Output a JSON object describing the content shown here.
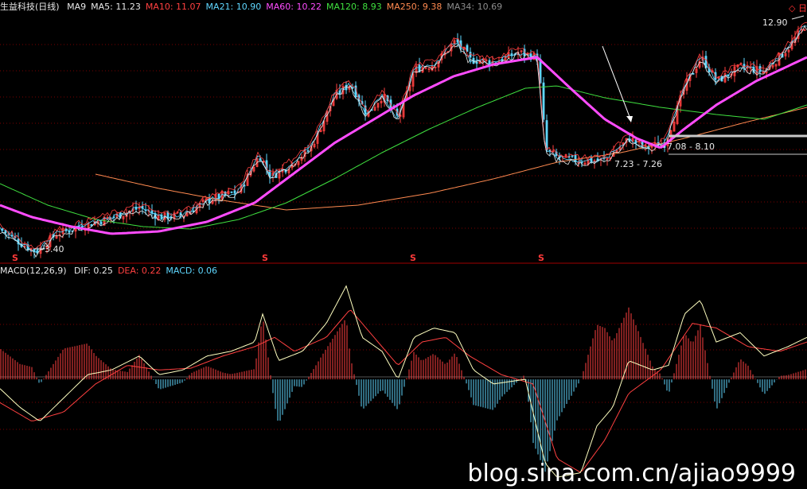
{
  "header": {
    "title": "生益科技(日线)",
    "ma_items": [
      {
        "label": "MA9",
        "value": "",
        "color": "#e8e8e8"
      },
      {
        "label": "MA5:",
        "value": "11.23",
        "color": "#e8e8e8"
      },
      {
        "label": "MA10:",
        "value": "11.07",
        "color": "#ff4040"
      },
      {
        "label": "MA21:",
        "value": "10.90",
        "color": "#5fd7ff"
      },
      {
        "label": "MA60:",
        "value": "10.22",
        "color": "#ff4cff"
      },
      {
        "label": "MA120:",
        "value": "8.93",
        "color": "#3fe03f"
      },
      {
        "label": "MA250:",
        "value": "9.38",
        "color": "#ff8a50"
      },
      {
        "label": "MA34:",
        "value": "10.69",
        "color": "#8c8c8c"
      }
    ],
    "flag_text": "◇ 日"
  },
  "macd_header": {
    "label": "MACD(12,26,9)",
    "items": [
      {
        "label": "DIF:",
        "value": "0.25",
        "color": "#e8e8e8"
      },
      {
        "label": "DEA:",
        "value": "0.22",
        "color": "#ff4040"
      },
      {
        "label": "MACD:",
        "value": "0.06",
        "color": "#5fd7ff"
      }
    ]
  },
  "annotations": {
    "high": "12.90",
    "low": "3.40",
    "range1": "7.23 - 7.26",
    "range2": "7.08 - 8.10"
  },
  "s_mark": "S",
  "watermark": "blog.sina.com.cn/ajiao9999",
  "colors": {
    "up": "#ff4040",
    "down": "#5fd7ff",
    "grid": "#7a0000",
    "ma5": "#e8e8e8",
    "ma10": "#ff4040",
    "ma21": "#5fd7ff",
    "ma60": "#ff4cff",
    "ma120": "#3fe03f",
    "ma250": "#ff8a50"
  },
  "chart_data": {
    "type": "line",
    "title": "生益科技(日线)",
    "price_range": [
      3.0,
      13.4
    ],
    "price_series": {
      "close_anchors": [
        [
          0,
          4.4
        ],
        [
          30,
          3.7
        ],
        [
          45,
          3.45
        ],
        [
          70,
          4.2
        ],
        [
          110,
          4.6
        ],
        [
          150,
          5.0
        ],
        [
          175,
          5.3
        ],
        [
          200,
          4.9
        ],
        [
          230,
          5.0
        ],
        [
          260,
          5.6
        ],
        [
          300,
          6.0
        ],
        [
          325,
          7.5
        ],
        [
          340,
          6.6
        ],
        [
          360,
          7.0
        ],
        [
          390,
          7.8
        ],
        [
          420,
          10.0
        ],
        [
          440,
          10.5
        ],
        [
          460,
          9.2
        ],
        [
          480,
          10.0
        ],
        [
          500,
          9.0
        ],
        [
          520,
          11.1
        ],
        [
          545,
          11.3
        ],
        [
          572,
          12.3
        ],
        [
          590,
          11.5
        ],
        [
          620,
          11.4
        ],
        [
          650,
          11.8
        ],
        [
          675,
          11.6
        ],
        [
          685,
          7.7
        ],
        [
          700,
          7.4
        ],
        [
          730,
          7.25
        ],
        [
          760,
          7.3
        ],
        [
          790,
          8.2
        ],
        [
          810,
          7.8
        ],
        [
          835,
          8.0
        ],
        [
          860,
          10.4
        ],
        [
          880,
          11.6
        ],
        [
          900,
          10.6
        ],
        [
          930,
          11.2
        ],
        [
          960,
          11.0
        ],
        [
          990,
          12.0
        ],
        [
          1010,
          12.9
        ]
      ],
      "ma60_anchors": [
        [
          0,
          5.4
        ],
        [
          40,
          4.9
        ],
        [
          90,
          4.5
        ],
        [
          140,
          4.2
        ],
        [
          200,
          4.3
        ],
        [
          260,
          4.7
        ],
        [
          320,
          5.5
        ],
        [
          360,
          6.5
        ],
        [
          420,
          8.0
        ],
        [
          470,
          9.0
        ],
        [
          520,
          10.0
        ],
        [
          570,
          10.8
        ],
        [
          620,
          11.3
        ],
        [
          675,
          11.6
        ],
        [
          720,
          10.2
        ],
        [
          760,
          9.0
        ],
        [
          800,
          8.2
        ],
        [
          830,
          7.8
        ],
        [
          860,
          8.6
        ],
        [
          900,
          9.6
        ],
        [
          950,
          10.6
        ],
        [
          1014,
          11.6
        ]
      ],
      "ma120_anchors": [
        [
          0,
          6.3
        ],
        [
          60,
          5.4
        ],
        [
          120,
          4.8
        ],
        [
          180,
          4.5
        ],
        [
          240,
          4.4
        ],
        [
          300,
          4.8
        ],
        [
          360,
          5.5
        ],
        [
          420,
          6.5
        ],
        [
          480,
          7.6
        ],
        [
          540,
          8.6
        ],
        [
          600,
          9.5
        ],
        [
          660,
          10.3
        ],
        [
          700,
          10.4
        ],
        [
          760,
          9.9
        ],
        [
          830,
          9.5
        ],
        [
          900,
          9.2
        ],
        [
          960,
          9.0
        ],
        [
          1014,
          9.6
        ]
      ],
      "ma250_anchors": [
        [
          120,
          6.7
        ],
        [
          200,
          6.1
        ],
        [
          280,
          5.6
        ],
        [
          360,
          5.2
        ],
        [
          450,
          5.4
        ],
        [
          540,
          5.9
        ],
        [
          620,
          6.5
        ],
        [
          700,
          7.2
        ],
        [
          780,
          7.6
        ],
        [
          860,
          8.2
        ],
        [
          940,
          8.9
        ],
        [
          1014,
          9.5
        ]
      ]
    },
    "macd_range": [
      -1.15,
      1.1
    ],
    "macd_series": {
      "dif_anchors": [
        [
          0,
          -0.1
        ],
        [
          25,
          -0.3
        ],
        [
          50,
          -0.45
        ],
        [
          80,
          -0.2
        ],
        [
          110,
          0.05
        ],
        [
          140,
          0.1
        ],
        [
          175,
          0.25
        ],
        [
          200,
          0.05
        ],
        [
          230,
          0.1
        ],
        [
          260,
          0.25
        ],
        [
          290,
          0.3
        ],
        [
          320,
          0.4
        ],
        [
          330,
          0.7
        ],
        [
          350,
          0.2
        ],
        [
          380,
          0.3
        ],
        [
          410,
          0.6
        ],
        [
          435,
          1.0
        ],
        [
          455,
          0.45
        ],
        [
          480,
          0.3
        ],
        [
          500,
          0.0
        ],
        [
          520,
          0.45
        ],
        [
          545,
          0.55
        ],
        [
          572,
          0.5
        ],
        [
          595,
          0.1
        ],
        [
          620,
          -0.05
        ],
        [
          660,
          0.0
        ],
        [
          685,
          -0.9
        ],
        [
          700,
          -1.05
        ],
        [
          730,
          -1.0
        ],
        [
          750,
          -0.5
        ],
        [
          770,
          -0.3
        ],
        [
          790,
          0.2
        ],
        [
          820,
          0.1
        ],
        [
          840,
          0.15
        ],
        [
          860,
          0.7
        ],
        [
          880,
          0.85
        ],
        [
          900,
          0.4
        ],
        [
          930,
          0.5
        ],
        [
          960,
          0.25
        ],
        [
          990,
          0.35
        ],
        [
          1014,
          0.45
        ]
      ],
      "dea_anchors": [
        [
          0,
          -0.25
        ],
        [
          40,
          -0.45
        ],
        [
          80,
          -0.35
        ],
        [
          120,
          -0.05
        ],
        [
          160,
          0.15
        ],
        [
          200,
          0.1
        ],
        [
          240,
          0.12
        ],
        [
          280,
          0.25
        ],
        [
          320,
          0.35
        ],
        [
          345,
          0.45
        ],
        [
          370,
          0.3
        ],
        [
          410,
          0.45
        ],
        [
          440,
          0.75
        ],
        [
          470,
          0.45
        ],
        [
          500,
          0.15
        ],
        [
          530,
          0.4
        ],
        [
          560,
          0.45
        ],
        [
          590,
          0.25
        ],
        [
          630,
          0.05
        ],
        [
          670,
          -0.05
        ],
        [
          700,
          -0.85
        ],
        [
          730,
          -1.0
        ],
        [
          760,
          -0.65
        ],
        [
          790,
          -0.15
        ],
        [
          830,
          0.1
        ],
        [
          870,
          0.6
        ],
        [
          900,
          0.55
        ],
        [
          940,
          0.35
        ],
        [
          980,
          0.3
        ],
        [
          1014,
          0.4
        ]
      ]
    },
    "legend": "top-left",
    "grid": true
  }
}
